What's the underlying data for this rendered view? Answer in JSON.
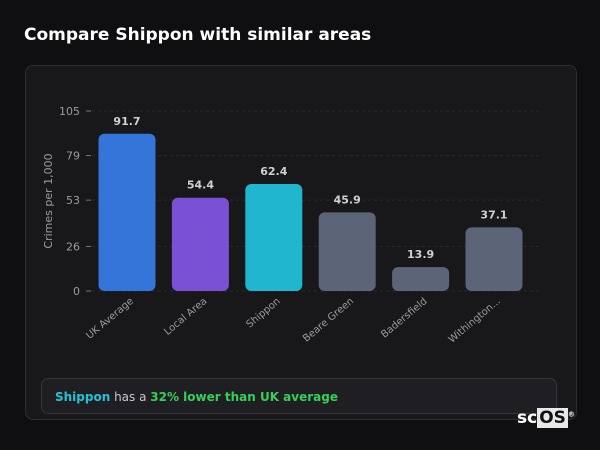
{
  "header": {
    "title": "Compare Shippon with similar areas"
  },
  "chart_data": {
    "type": "bar",
    "categories": [
      "UK Average",
      "Local Area",
      "Shippon",
      "Beare Green",
      "Badersfield",
      "Withington..."
    ],
    "values": [
      91.7,
      54.4,
      62.4,
      45.9,
      13.9,
      37.1
    ],
    "colors": [
      "#3574d9",
      "#7a50d4",
      "#20b6cf",
      "#5b6577",
      "#5b6577",
      "#5b6577"
    ],
    "ylabel": "Crimes per 1,000",
    "xlabel": "",
    "ylim": [
      0,
      105
    ],
    "yticks": [
      0,
      26,
      53,
      79,
      105
    ],
    "grid": true
  },
  "insight": {
    "area": "Shippon",
    "middle": " has a ",
    "comparison": "32% lower than UK average"
  },
  "logo": {
    "prefix": "sc",
    "suffix": "OS",
    "mark": "®"
  }
}
